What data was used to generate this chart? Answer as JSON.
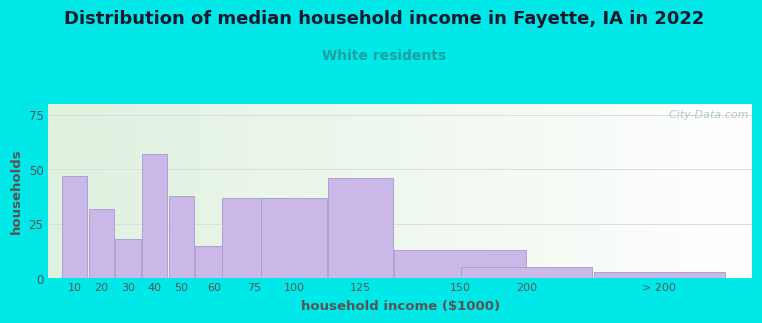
{
  "title": "Distribution of median household income in Fayette, IA in 2022",
  "subtitle": "White residents",
  "xlabel": "household income ($1000)",
  "ylabel": "households",
  "bar_labels": [
    "10",
    "20",
    "30",
    "40",
    "50",
    "60",
    "75",
    "100",
    "125",
    "150",
    "200",
    "> 200"
  ],
  "bar_values": [
    47,
    32,
    18,
    57,
    38,
    15,
    37,
    37,
    46,
    13,
    5,
    3
  ],
  "bar_widths": [
    10,
    10,
    10,
    10,
    10,
    15,
    25,
    25,
    25,
    50,
    50,
    50
  ],
  "bar_lefts": [
    0,
    10,
    20,
    30,
    40,
    50,
    60,
    75,
    100,
    125,
    150,
    200
  ],
  "bar_color": "#c9b8e8",
  "bar_edge_color": "#a898cc",
  "ylim": [
    0,
    80
  ],
  "yticks": [
    0,
    25,
    50,
    75
  ],
  "bg_outer": "#00e8e8",
  "title_fontsize": 13,
  "subtitle_color": "#20a0a0",
  "subtitle_fontsize": 10,
  "axis_label_color": "#555555",
  "tick_label_color": "#555555",
  "watermark_text": "  City-Data.com",
  "watermark_color": "#a8c0c8",
  "grid_color": "#dddddd"
}
